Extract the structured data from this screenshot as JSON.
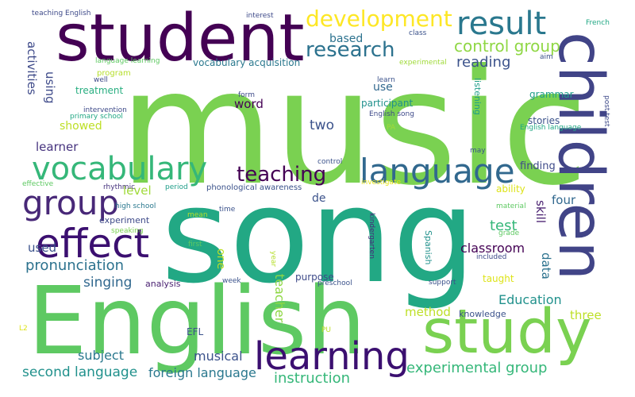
{
  "words": [
    {
      "text": "music",
      "color": "#7ad151"
    },
    {
      "text": "song",
      "color": "#22a884"
    },
    {
      "text": "English",
      "color": "#5ec962"
    },
    {
      "text": "student",
      "color": "#440154"
    },
    {
      "text": "children",
      "color": "#414487"
    },
    {
      "text": "study",
      "color": "#7ad151"
    },
    {
      "text": "effect",
      "color": "#3b0f70"
    },
    {
      "text": "learning",
      "color": "#3b0f70"
    },
    {
      "text": "language",
      "color": "#31688e"
    },
    {
      "text": "vocabulary",
      "color": "#35b779"
    },
    {
      "text": "group",
      "color": "#482878"
    },
    {
      "text": "result",
      "color": "#2a788e"
    },
    {
      "text": "development",
      "color": "#fde725"
    },
    {
      "text": "research",
      "color": "#2c728e"
    },
    {
      "text": "teaching",
      "color": "#440154"
    },
    {
      "text": "control group",
      "color": "#8fd744"
    },
    {
      "text": "experimental group",
      "color": "#35b779"
    },
    {
      "text": "reading",
      "color": "#3b528b"
    },
    {
      "text": "pronunciation",
      "color": "#2c728e"
    },
    {
      "text": "second language",
      "color": "#21918c"
    },
    {
      "text": "foreign language",
      "color": "#2a788e"
    },
    {
      "text": "instruction",
      "color": "#35b779"
    },
    {
      "text": "Education",
      "color": "#21918c"
    },
    {
      "text": "musical",
      "color": "#3b528b"
    },
    {
      "text": "singing",
      "color": "#31688e"
    },
    {
      "text": "subject",
      "color": "#2a788e"
    },
    {
      "text": "teacher",
      "color": "#8fd744"
    },
    {
      "text": "test",
      "color": "#35b779"
    },
    {
      "text": "classroom",
      "color": "#440154"
    },
    {
      "text": "learner",
      "color": "#46337e"
    },
    {
      "text": "activities",
      "color": "#3e4a89"
    },
    {
      "text": "using",
      "color": "#3e4a89"
    },
    {
      "text": "word",
      "color": "#440154"
    },
    {
      "text": "two",
      "color": "#3b528b"
    },
    {
      "text": "level",
      "color": "#a0da39"
    },
    {
      "text": "used",
      "color": "#3b528b"
    },
    {
      "text": "data",
      "color": "#2c728e"
    },
    {
      "text": "skill",
      "color": "#481f70"
    },
    {
      "text": "four",
      "color": "#31688e"
    },
    {
      "text": "three",
      "color": "#bddf26"
    },
    {
      "text": "method",
      "color": "#bddf26"
    },
    {
      "text": "one",
      "color": "#bddf26"
    },
    {
      "text": "showed",
      "color": "#bddf26"
    },
    {
      "text": "based",
      "color": "#2c728e"
    },
    {
      "text": "use",
      "color": "#31688e"
    },
    {
      "text": "finding",
      "color": "#3e4a89"
    },
    {
      "text": "participant",
      "color": "#21918c"
    },
    {
      "text": "vocabulary acquisition",
      "color": "#2a788e"
    },
    {
      "text": "treatment",
      "color": "#28ae80"
    },
    {
      "text": "grammar",
      "color": "#1f9e89"
    },
    {
      "text": "stories",
      "color": "#3b528b"
    },
    {
      "text": "de",
      "color": "#3b528b"
    },
    {
      "text": "ability",
      "color": "#dde318"
    },
    {
      "text": "purpose",
      "color": "#3e4a89"
    },
    {
      "text": "taught",
      "color": "#dde318"
    },
    {
      "text": "EFL",
      "color": "#3b528b"
    },
    {
      "text": "knowledge",
      "color": "#3b528b"
    },
    {
      "text": "experiment",
      "color": "#3e4a89"
    },
    {
      "text": "analysis",
      "color": "#481f70"
    },
    {
      "text": "listening",
      "color": "#1f9e89"
    },
    {
      "text": "Spanish",
      "color": "#21918c"
    },
    {
      "text": "program",
      "color": "#b5de2b"
    },
    {
      "text": "intervention",
      "color": "#3e4a89"
    },
    {
      "text": "primary school",
      "color": "#22a884"
    },
    {
      "text": "English song",
      "color": "#3e4a89"
    },
    {
      "text": "English language",
      "color": "#22a884"
    },
    {
      "text": "phonological awareness",
      "color": "#3b528b"
    },
    {
      "text": "high school",
      "color": "#2a788e"
    },
    {
      "text": "speaking",
      "color": "#7ad151"
    },
    {
      "text": "rhythmic",
      "color": "#46337e"
    },
    {
      "text": "effective",
      "color": "#5ec962"
    },
    {
      "text": "investigate",
      "color": "#e5e419"
    },
    {
      "text": "kindergarten",
      "color": "#482878"
    },
    {
      "text": "preschool",
      "color": "#3b528b"
    },
    {
      "text": "support",
      "color": "#3b528b"
    },
    {
      "text": "included",
      "color": "#3e4a89"
    },
    {
      "text": "material",
      "color": "#5ec962"
    },
    {
      "text": "grade",
      "color": "#5ec962"
    },
    {
      "text": "may",
      "color": "#3b528b"
    },
    {
      "text": "post test",
      "color": "#3e4a89"
    },
    {
      "text": "language learning",
      "color": "#5ec962"
    },
    {
      "text": "teaching English",
      "color": "#3e4a89"
    },
    {
      "text": "interest",
      "color": "#3e4a89"
    },
    {
      "text": "class",
      "color": "#3b528b"
    },
    {
      "text": "French",
      "color": "#22a884"
    },
    {
      "text": "aim",
      "color": "#3b528b"
    },
    {
      "text": "experimental",
      "color": "#a0da39"
    },
    {
      "text": "learn",
      "color": "#3b528b"
    },
    {
      "text": "form",
      "color": "#3e4a89"
    },
    {
      "text": "well",
      "color": "#3e4a89"
    },
    {
      "text": "PA",
      "color": "#a0da39"
    },
    {
      "text": "control",
      "color": "#3b528b"
    },
    {
      "text": "period",
      "color": "#1f9e89"
    },
    {
      "text": "time",
      "color": "#3b528b"
    },
    {
      "text": "mean",
      "color": "#b5de2b"
    },
    {
      "text": "first",
      "color": "#5ec962"
    },
    {
      "text": "year",
      "color": "#b5de2b"
    },
    {
      "text": "week",
      "color": "#3b528b"
    },
    {
      "text": "L2",
      "color": "#dde318"
    },
    {
      "text": "PU",
      "color": "#bddf26"
    }
  ]
}
